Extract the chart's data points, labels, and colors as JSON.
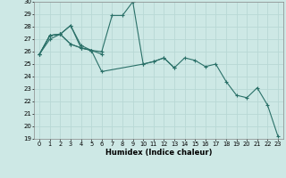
{
  "xlabel": "Humidex (Indice chaleur)",
  "ylabel": "",
  "xlim": [
    -0.5,
    23.5
  ],
  "ylim": [
    19,
    30
  ],
  "yticks": [
    19,
    20,
    21,
    22,
    23,
    24,
    25,
    26,
    27,
    28,
    29,
    30
  ],
  "xticks": [
    0,
    1,
    2,
    3,
    4,
    5,
    6,
    7,
    8,
    9,
    10,
    11,
    12,
    13,
    14,
    15,
    16,
    17,
    18,
    19,
    20,
    21,
    22,
    23
  ],
  "bg_color": "#cde8e5",
  "grid_color": "#b8d8d5",
  "line_color": "#2a7068",
  "series": [
    {
      "x": [
        0,
        1,
        2,
        3,
        4,
        5,
        6,
        7,
        8,
        9,
        10,
        11,
        12,
        13,
        14,
        15,
        16,
        17,
        18,
        19,
        20,
        21,
        22,
        23
      ],
      "y": [
        25.8,
        27.3,
        27.4,
        28.1,
        26.5,
        26.1,
        26.0,
        28.9,
        28.9,
        30.0,
        25.0,
        25.2,
        25.5,
        24.7,
        25.5,
        25.3,
        24.8,
        25.0,
        23.6,
        22.5,
        22.3,
        23.1,
        21.7,
        19.2
      ]
    },
    {
      "x": [
        0,
        1,
        2,
        3,
        4,
        5,
        6,
        10,
        11,
        12,
        13
      ],
      "y": [
        25.8,
        27.3,
        27.4,
        28.1,
        26.3,
        26.1,
        24.4,
        25.0,
        25.2,
        25.5,
        24.7
      ]
    },
    {
      "x": [
        0,
        1,
        2,
        3,
        4,
        5
      ],
      "y": [
        25.8,
        27.3,
        27.4,
        26.6,
        26.3,
        26.1
      ]
    },
    {
      "x": [
        0,
        1,
        2,
        3,
        4,
        5,
        6
      ],
      "y": [
        25.8,
        27.0,
        27.4,
        26.6,
        26.3,
        26.1,
        25.8
      ]
    }
  ]
}
